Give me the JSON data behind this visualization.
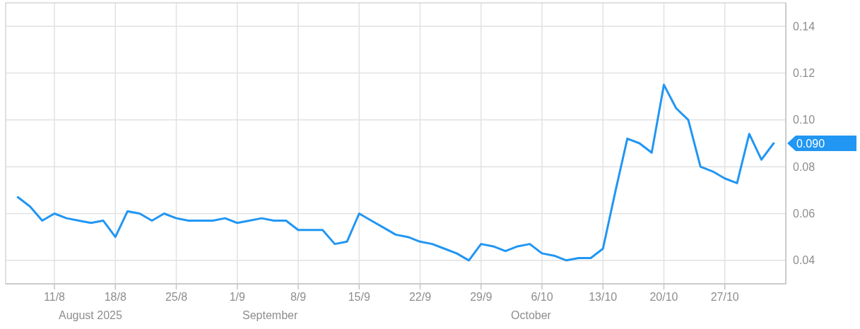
{
  "chart_data": {
    "type": "line",
    "categories": [
      null,
      null,
      null,
      "11/8",
      null,
      null,
      null,
      null,
      "18/8",
      null,
      null,
      null,
      null,
      "25/8",
      null,
      null,
      null,
      null,
      "1/9",
      null,
      null,
      null,
      null,
      "8/9",
      null,
      null,
      null,
      null,
      "15/9",
      null,
      null,
      null,
      null,
      "22/9",
      null,
      null,
      null,
      null,
      "29/9",
      null,
      null,
      null,
      null,
      "6/10",
      null,
      null,
      null,
      null,
      "13/10",
      null,
      null,
      null,
      null,
      "20/10",
      null,
      null,
      null,
      null,
      "27/10",
      null,
      null,
      null,
      null
    ],
    "series": [
      {
        "color": "#2196f3",
        "values": [
          0.067,
          0.063,
          0.057,
          0.06,
          0.058,
          0.057,
          0.056,
          0.057,
          0.05,
          0.061,
          0.06,
          0.057,
          0.06,
          0.058,
          0.057,
          0.057,
          0.057,
          0.058,
          0.056,
          0.057,
          0.058,
          0.057,
          0.057,
          0.053,
          0.053,
          0.053,
          0.047,
          0.048,
          0.06,
          0.057,
          0.054,
          0.051,
          0.05,
          0.048,
          0.047,
          0.045,
          0.043,
          0.04,
          0.047,
          0.046,
          0.044,
          0.046,
          0.047,
          0.043,
          0.042,
          0.04,
          0.041,
          0.041,
          0.045,
          0.069,
          0.092,
          0.09,
          0.086,
          0.115,
          0.105,
          0.1,
          0.08,
          0.078,
          0.075,
          0.073,
          0.094,
          0.083,
          0.09
        ]
      }
    ],
    "ylim": [
      0.03,
      0.15
    ],
    "yticks": [
      0.04,
      0.06,
      0.08,
      {
        "value": 0.1,
        "label": "0.10"
      },
      0.12,
      0.14
    ],
    "grid": true,
    "annotations": [
      "August 2025",
      "September",
      "October",
      "0.090"
    ]
  }
}
